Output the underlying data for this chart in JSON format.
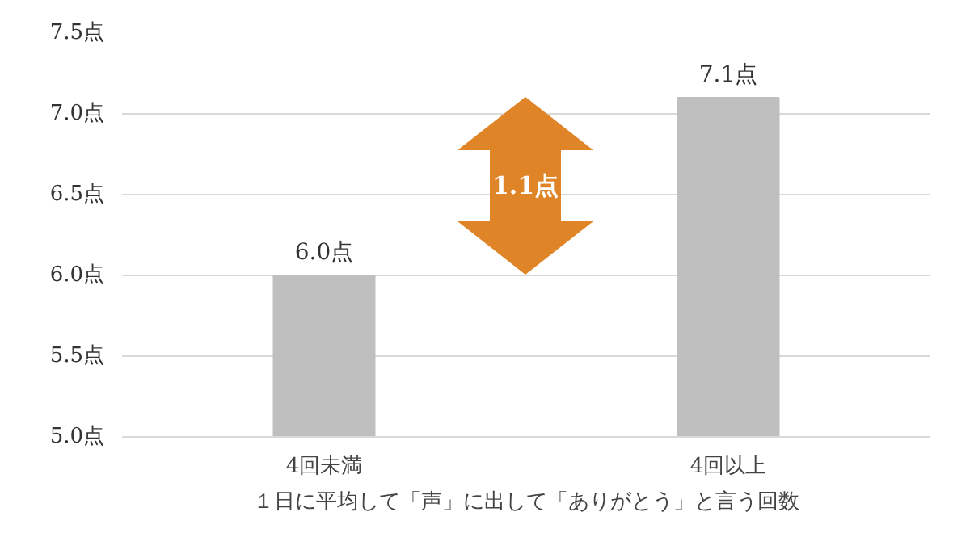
{
  "chart_data": {
    "type": "bar",
    "categories": [
      "4回未満",
      "4回以上"
    ],
    "values": [
      6.0,
      7.1
    ],
    "color": "#bfbfbf",
    "value_labels": [
      "6.0点",
      "7.1点"
    ],
    "xlabel": "１日に平均して「声」に出して「ありがとう」と言う回数",
    "ylim": [
      5,
      7.5
    ],
    "yticks": [
      {
        "value": 5,
        "label": "5.0点"
      },
      {
        "value": 5.5,
        "label": "5.5点"
      },
      {
        "value": 6,
        "label": "6.0点"
      },
      {
        "value": 6.5,
        "label": "6.5点"
      },
      {
        "value": 7,
        "label": "7.0点"
      },
      {
        "value": 7.5,
        "label": "7.5点"
      }
    ],
    "grid": "y",
    "annotations": [
      "1.1点"
    ]
  }
}
